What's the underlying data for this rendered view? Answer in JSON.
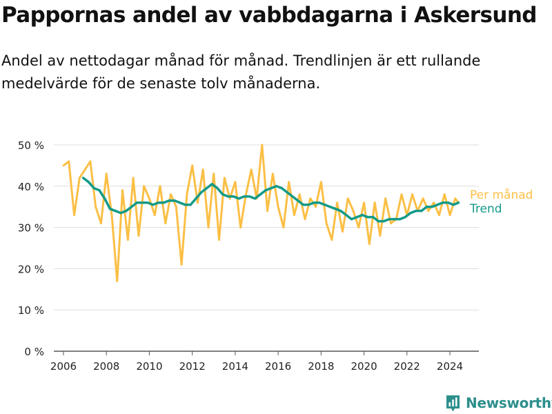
{
  "title": "Pappornas andel av vabbdagarna i Askersund",
  "subtitle": "Andel av nettodagar månad för månad. Trendlinjen är ett rullande medelvärde för de senaste tolv månaderna.",
  "brand": {
    "name": "Newsworthy",
    "icon": "newsworthy-logo-icon"
  },
  "colors": {
    "monthly": "#fbbf45",
    "trend": "#139a88",
    "grid": "#dddddd",
    "axis": "#555555",
    "text": "#222222"
  },
  "chart_data": {
    "type": "line",
    "title": "Pappornas andel av vabbdagarna i Askersund",
    "xlabel": "",
    "ylabel": "",
    "xlim": [
      2005.55,
      2025.35
    ],
    "ylim": [
      0,
      50
    ],
    "x_ticks": [
      "2006",
      "2008",
      "2010",
      "2012",
      "2014",
      "2016",
      "2018",
      "2020",
      "2022",
      "2024"
    ],
    "y_ticks": [
      "0 %",
      "10 %",
      "20 %",
      "30 %",
      "40 %",
      "50 %"
    ],
    "grid": true,
    "legend_placement": "right, at line ends",
    "series": [
      {
        "name": "Per månad",
        "style": "monthly",
        "x": [
          2006.0,
          2006.25,
          2006.5,
          2006.75,
          2007.0,
          2007.25,
          2007.5,
          2007.75,
          2008.0,
          2008.25,
          2008.5,
          2008.75,
          2009.0,
          2009.25,
          2009.5,
          2009.75,
          2010.0,
          2010.25,
          2010.5,
          2010.75,
          2011.0,
          2011.25,
          2011.5,
          2011.75,
          2012.0,
          2012.25,
          2012.5,
          2012.75,
          2013.0,
          2013.25,
          2013.5,
          2013.75,
          2014.0,
          2014.25,
          2014.5,
          2014.75,
          2015.0,
          2015.25,
          2015.5,
          2015.75,
          2016.0,
          2016.25,
          2016.5,
          2016.75,
          2017.0,
          2017.25,
          2017.5,
          2017.75,
          2018.0,
          2018.25,
          2018.5,
          2018.75,
          2019.0,
          2019.25,
          2019.5,
          2019.75,
          2020.0,
          2020.25,
          2020.5,
          2020.75,
          2021.0,
          2021.25,
          2021.5,
          2021.75,
          2022.0,
          2022.25,
          2022.5,
          2022.75,
          2023.0,
          2023.25,
          2023.5,
          2023.75,
          2024.0,
          2024.25,
          2024.4
        ],
        "values": [
          45,
          46,
          33,
          42,
          44,
          46,
          35,
          31,
          43,
          33,
          17,
          39,
          27,
          42,
          28,
          40,
          37,
          33,
          40,
          31,
          38,
          35,
          21,
          38,
          45,
          36,
          44,
          30,
          43,
          27,
          42,
          37,
          41,
          30,
          38,
          44,
          37,
          50,
          34,
          43,
          35,
          30,
          41,
          33,
          38,
          32,
          37,
          35,
          41,
          31,
          27,
          36,
          29,
          37,
          34,
          30,
          36,
          26,
          36,
          28,
          37,
          31,
          32,
          38,
          33,
          38,
          34,
          37,
          34,
          36,
          33,
          38,
          33,
          37,
          36
        ]
      },
      {
        "name": "Trend",
        "style": "trend",
        "x": [
          2006.92,
          2007.17,
          2007.42,
          2007.67,
          2007.92,
          2008.17,
          2008.42,
          2008.67,
          2008.92,
          2009.17,
          2009.42,
          2009.67,
          2009.92,
          2010.17,
          2010.42,
          2010.67,
          2010.92,
          2011.17,
          2011.42,
          2011.67,
          2011.92,
          2012.17,
          2012.42,
          2012.67,
          2012.92,
          2013.17,
          2013.42,
          2013.67,
          2013.92,
          2014.17,
          2014.42,
          2014.67,
          2014.92,
          2015.17,
          2015.42,
          2015.67,
          2015.92,
          2016.17,
          2016.42,
          2016.67,
          2016.92,
          2017.17,
          2017.42,
          2017.67,
          2017.92,
          2018.17,
          2018.42,
          2018.67,
          2018.92,
          2019.17,
          2019.42,
          2019.67,
          2019.92,
          2020.17,
          2020.42,
          2020.67,
          2020.92,
          2021.17,
          2021.42,
          2021.67,
          2021.92,
          2022.17,
          2022.42,
          2022.67,
          2022.92,
          2023.17,
          2023.42,
          2023.67,
          2023.92,
          2024.17,
          2024.4
        ],
        "values": [
          42,
          41,
          39.5,
          39,
          37,
          34.5,
          34,
          33.5,
          34,
          35,
          36,
          36,
          36,
          35.5,
          36,
          36,
          36.5,
          36.5,
          36,
          35.5,
          35.5,
          37,
          38.5,
          39.5,
          40.5,
          39.5,
          38,
          37.5,
          37.5,
          37,
          37.5,
          37.5,
          37,
          38,
          39,
          39.5,
          40,
          39.5,
          38.5,
          37.5,
          36.5,
          35.5,
          35.5,
          36,
          36,
          35.5,
          35,
          34.5,
          34,
          33,
          32,
          32.5,
          33,
          32.5,
          32.5,
          31.5,
          31.5,
          32,
          32,
          32,
          32.5,
          33.5,
          34,
          34,
          35,
          35,
          35.5,
          36,
          36,
          35.5,
          36
        ]
      }
    ]
  }
}
